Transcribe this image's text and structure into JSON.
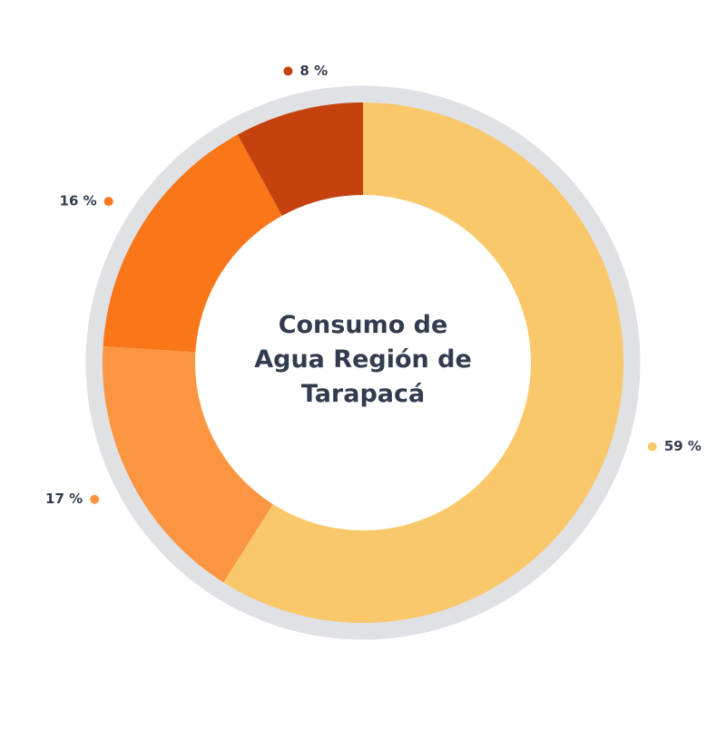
{
  "chart_data": {
    "type": "donut",
    "title": "Consumo de Agua Región de Tarapacá",
    "values": [
      59,
      17,
      16,
      8
    ],
    "value_labels": [
      "59 %",
      "17 %",
      "16 %",
      "8 %"
    ],
    "colors": [
      "#f9c86b",
      "#fb9541",
      "#f97619",
      "#c5420f"
    ]
  }
}
